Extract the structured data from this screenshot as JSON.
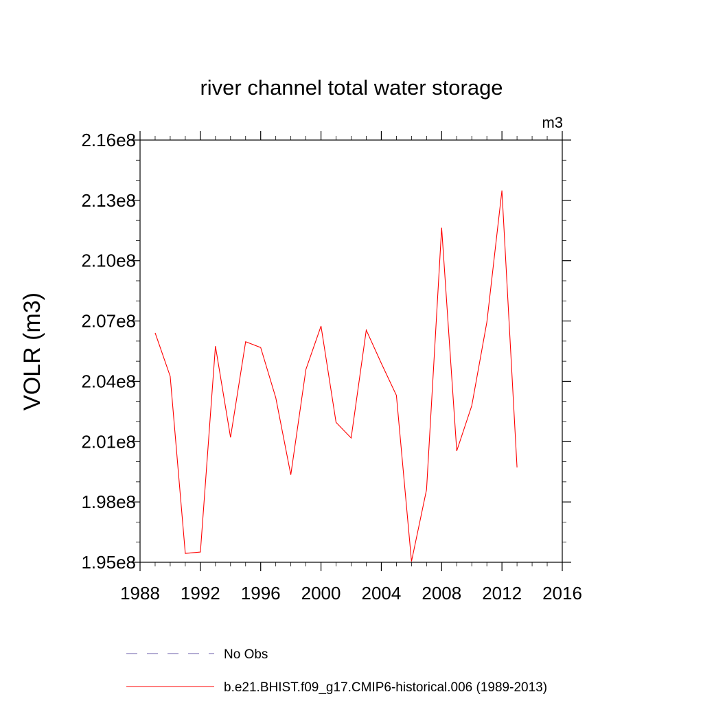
{
  "chart_data": {
    "type": "line",
    "title": "river channel total water storage",
    "units_label": "m3",
    "ylabel": "VOLR  (m3)",
    "xlabel": "",
    "xlim": [
      1988,
      2016
    ],
    "ylim": [
      195000000.0,
      216000000.0
    ],
    "x_ticks": [
      1988,
      1992,
      1996,
      2000,
      2004,
      2008,
      2012,
      2016
    ],
    "x_tick_labels": [
      "1988",
      "1992",
      "1996",
      "2000",
      "2004",
      "2008",
      "2012",
      "2016"
    ],
    "y_ticks": [
      195000000.0,
      198000000.0,
      201000000.0,
      204000000.0,
      207000000.0,
      210000000.0,
      213000000.0,
      216000000.0
    ],
    "y_tick_labels": [
      "1.95e8",
      "1.98e8",
      "2.01e8",
      "2.04e8",
      "2.07e8",
      "2.10e8",
      "2.13e8",
      "2.16e8"
    ],
    "grid": false,
    "legend_position": "bottom",
    "series": [
      {
        "name": "b.e21.BHIST.f09_g17.CMIP6-historical.006 (1989-2013)",
        "color": "#ff0000",
        "style": "solid",
        "x": [
          1989,
          1990,
          1991,
          1992,
          1993,
          1994,
          1995,
          1996,
          1997,
          1998,
          1999,
          2000,
          2001,
          2002,
          2003,
          2004,
          2005,
          2006,
          2007,
          2008,
          2009,
          2010,
          2011,
          2012,
          2013
        ],
        "values": [
          206410000.0,
          204250000.0,
          195440000.0,
          195510000.0,
          205750000.0,
          201210000.0,
          205970000.0,
          205680000.0,
          203180000.0,
          199350000.0,
          204590000.0,
          206750000.0,
          201960000.0,
          201180000.0,
          206550000.0,
          204900000.0,
          203300000.0,
          195040000.0,
          198610000.0,
          211640000.0,
          200540000.0,
          202790000.0,
          206950000.0,
          213490000.0,
          199720000.0
        ]
      }
    ],
    "legend": [
      {
        "label": "No Obs",
        "color": "#6b5ea8",
        "style": "dashed"
      },
      {
        "label": "b.e21.BHIST.f09_g17.CMIP6-historical.006 (1989-2013)",
        "color": "#ff0000",
        "style": "solid"
      }
    ]
  }
}
